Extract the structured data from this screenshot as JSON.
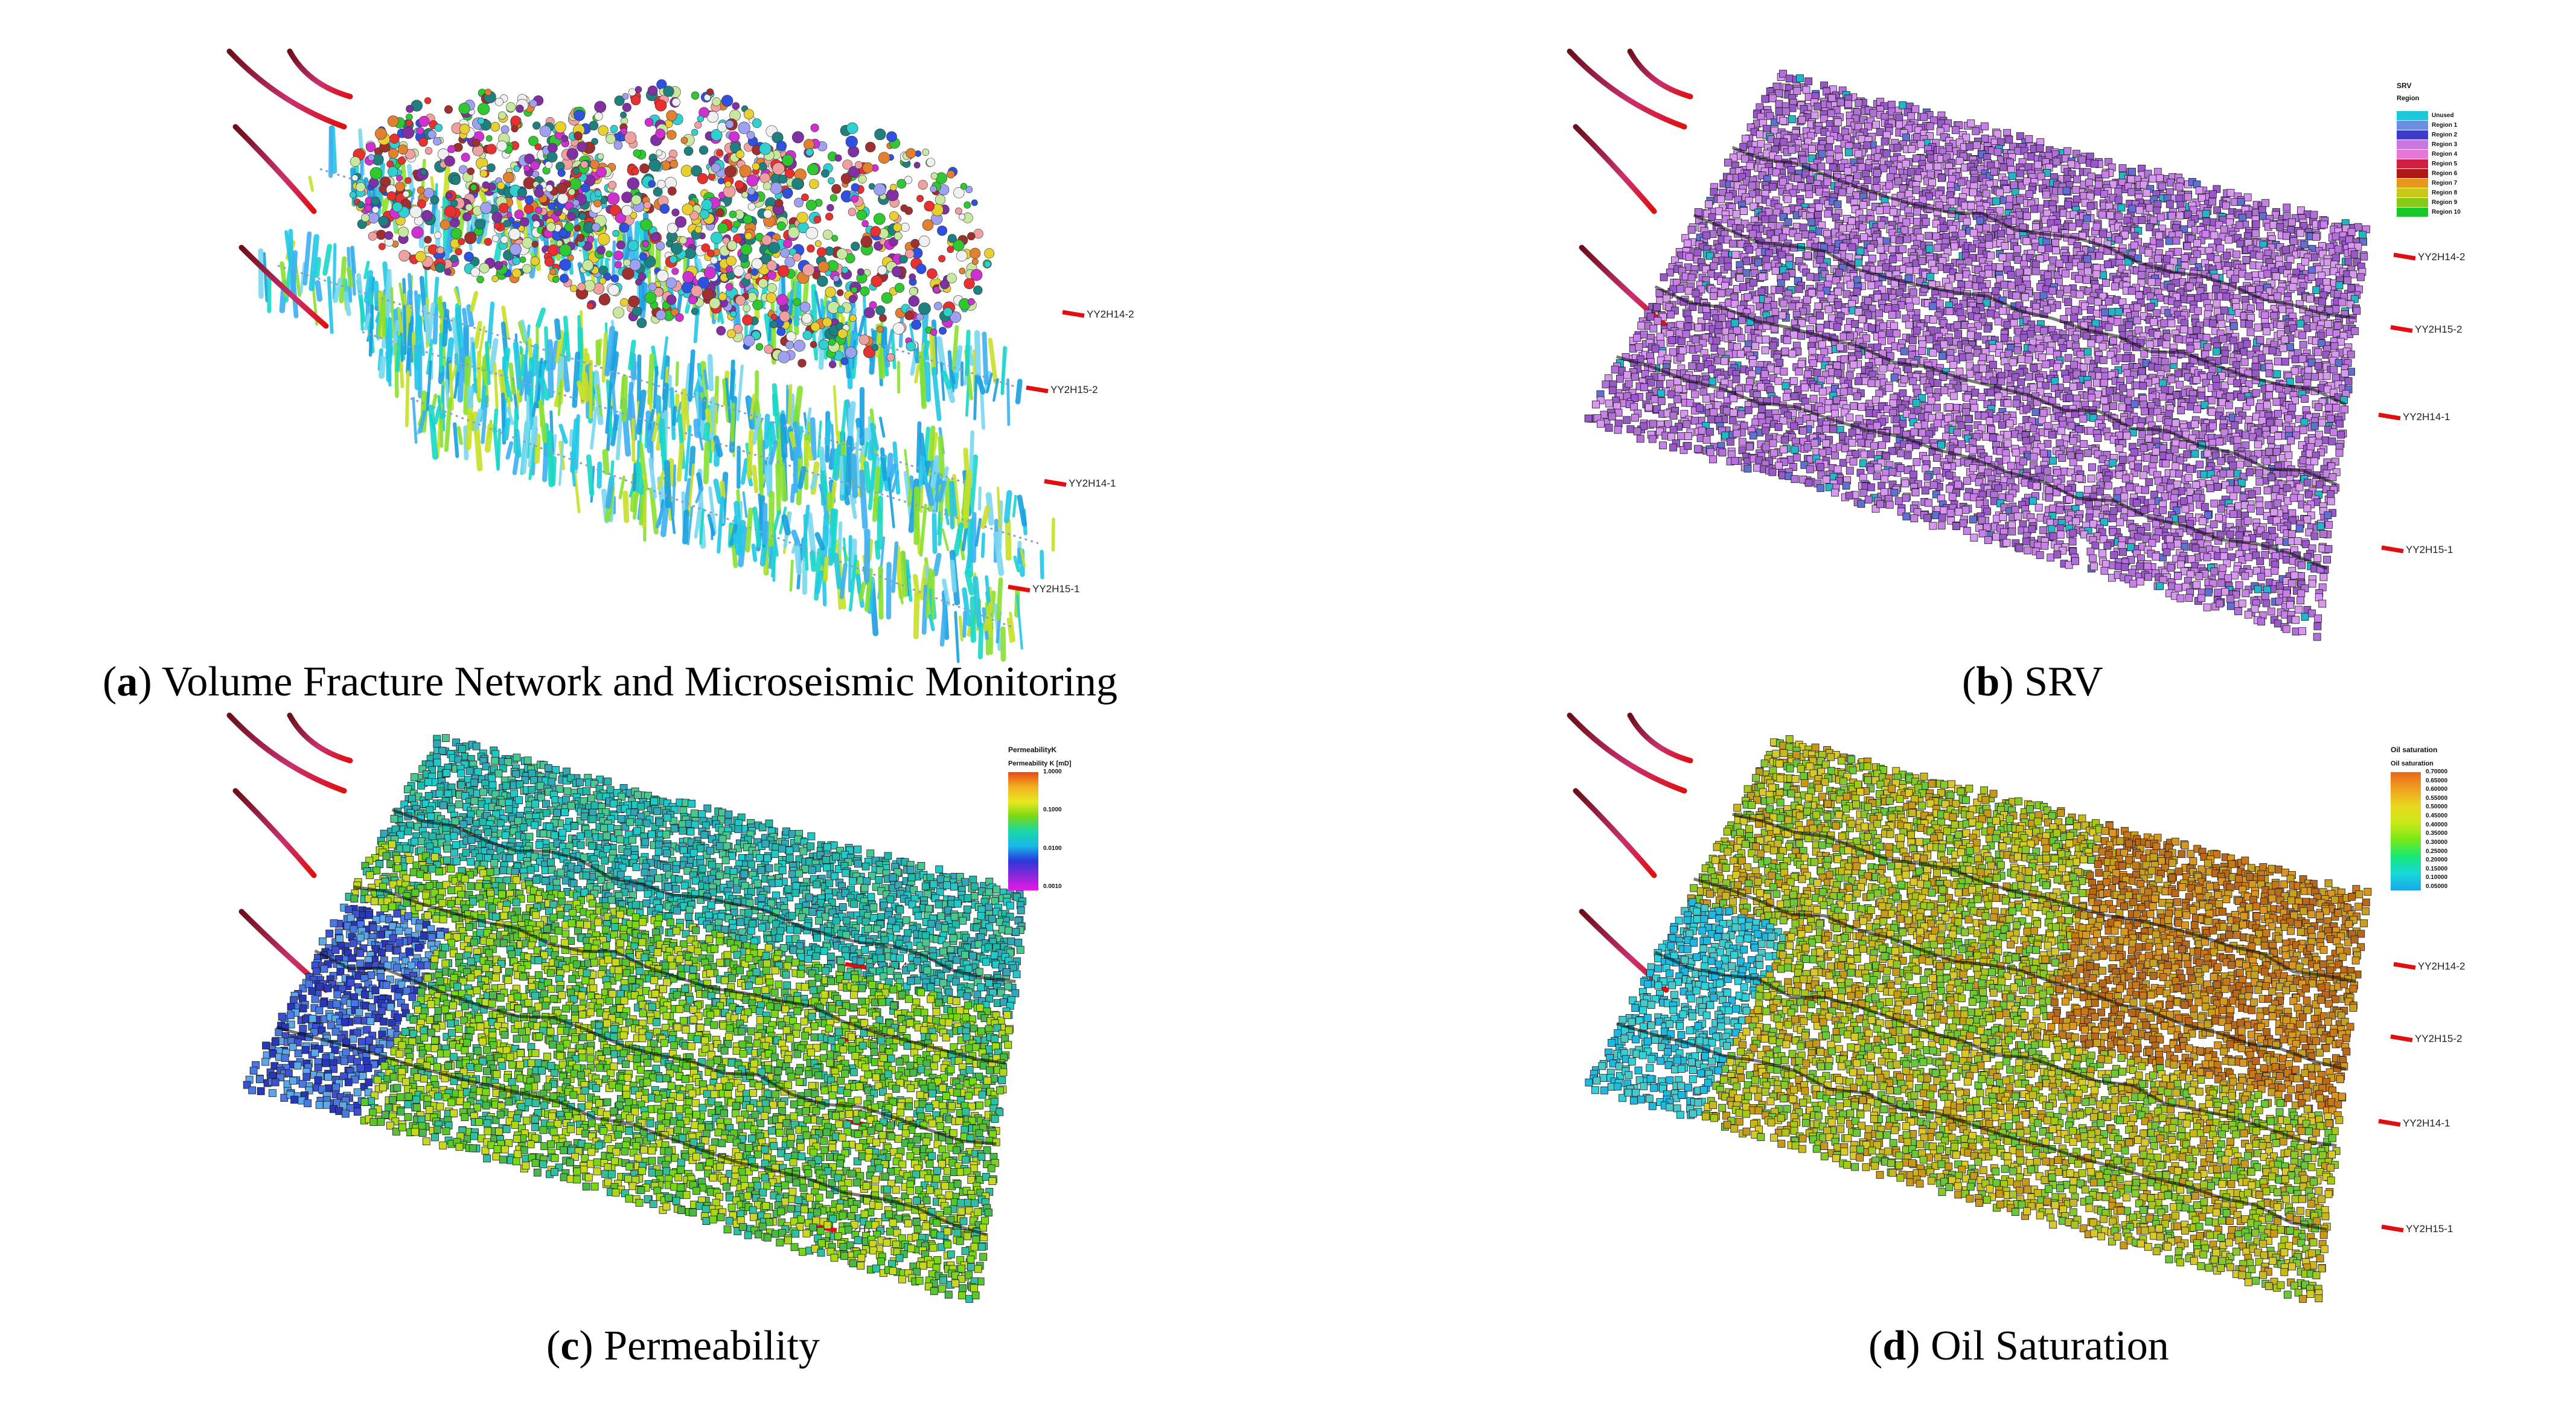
{
  "captions": {
    "a": {
      "letter": "a",
      "text": "Volume Fracture Network and Microseismic Monitoring"
    },
    "b": {
      "letter": "b",
      "text": "SRV"
    },
    "c": {
      "letter": "c",
      "text": "Permeability"
    },
    "d": {
      "letter": "d",
      "text": "Oil Saturation"
    }
  },
  "wells": [
    "YY2H14-2",
    "YY2H15-2",
    "YY2H14-1",
    "YY2H15-1"
  ],
  "legend_b": {
    "title": "SRV",
    "subtitle": "Region",
    "entries": [
      {
        "label": "Unused",
        "color": "#1fc8d8"
      },
      {
        "label": "Region 1",
        "color": "#6a8ee0"
      },
      {
        "label": "Region 2",
        "color": "#3c3cc8"
      },
      {
        "label": "Region 3",
        "color": "#c878e0"
      },
      {
        "label": "Region 4",
        "color": "#e878d8"
      },
      {
        "label": "Region 5",
        "color": "#d02040"
      },
      {
        "label": "Region 6",
        "color": "#b01818"
      },
      {
        "label": "Region 7",
        "color": "#e89818"
      },
      {
        "label": "Region 8",
        "color": "#c8c818"
      },
      {
        "label": "Region 9",
        "color": "#88c818"
      },
      {
        "label": "Region 10",
        "color": "#18c828"
      }
    ]
  },
  "legend_c": {
    "title": "PermeabilityK",
    "subtitle": "Permeability K [mD]",
    "ticks": [
      "1.0000",
      "0.1000",
      "0.0100",
      "0.0010"
    ]
  },
  "legend_d": {
    "title": "Oil saturation",
    "subtitle": "Oil saturation",
    "ticks": [
      "0.70000",
      "0.65000",
      "0.60000",
      "0.55000",
      "0.50000",
      "0.45000",
      "0.40000",
      "0.35000",
      "0.30000",
      "0.25000",
      "0.20000",
      "0.15000",
      "0.10000",
      "0.05000"
    ]
  },
  "colors": {
    "well_dark": "#6b0f1a",
    "well_pink": "#c8306e",
    "well_red": "#e01010",
    "srv_purple": "#b070d8",
    "perm_green": "#58c828",
    "perm_blue": "#3c50d0",
    "oil_yellow": "#c8b820",
    "oil_orange": "#c87818"
  }
}
